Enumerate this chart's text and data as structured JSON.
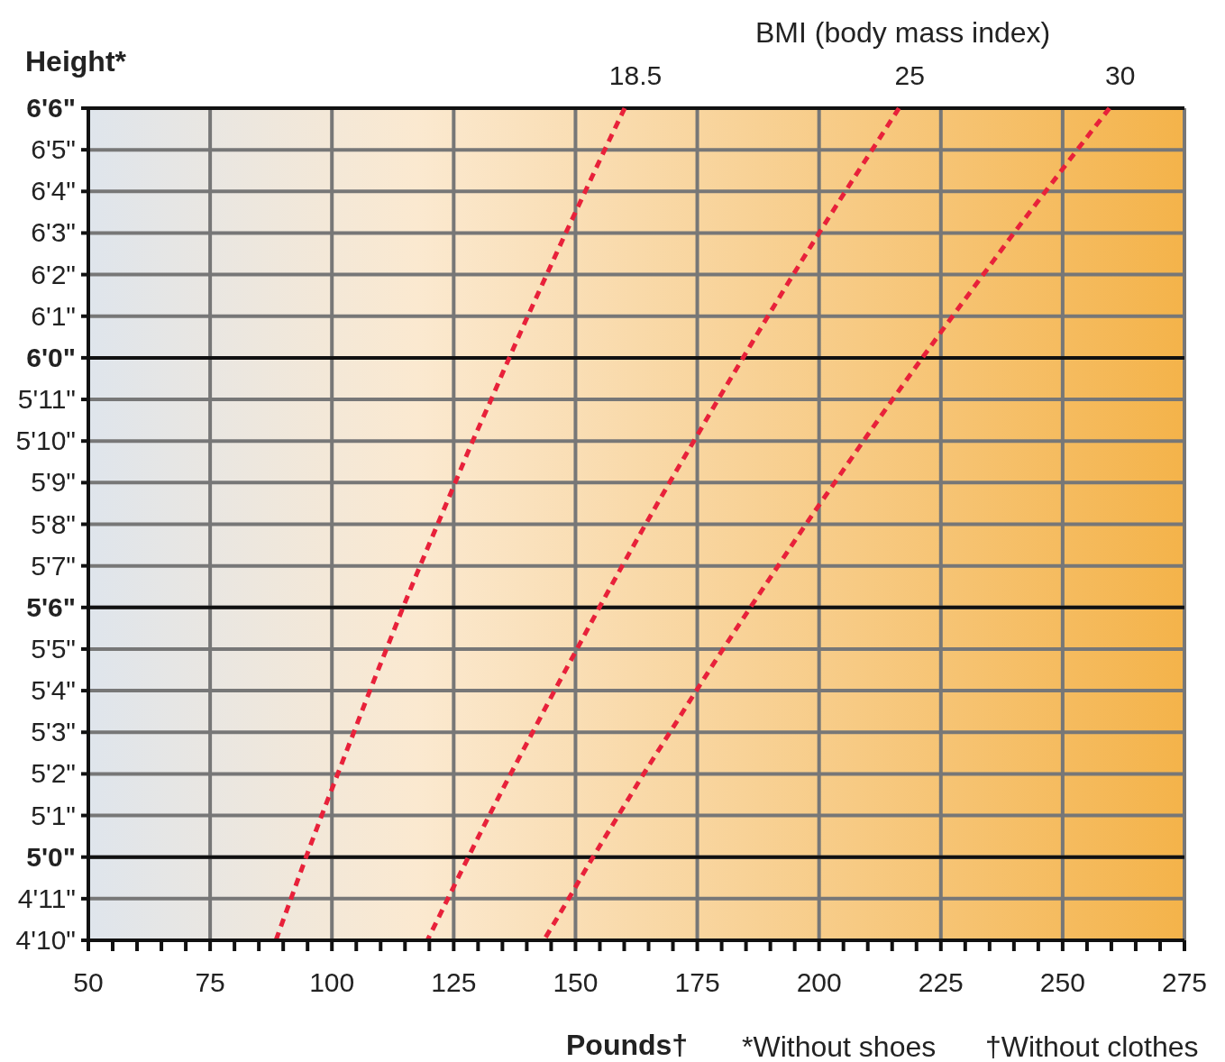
{
  "chart_data": {
    "type": "line",
    "orientation": "horizontal",
    "ylabel": "Height*",
    "xlabel": "Pounds†",
    "legend_title": "BMI (body mass index)",
    "annotations": [
      "*Without shoes",
      "†Without clothes"
    ],
    "categories": [
      "6'6\"",
      "6'5\"",
      "6'4\"",
      "6'3\"",
      "6'2\"",
      "6'1\"",
      "6'0\"",
      "5'11\"",
      "5'10\"",
      "5'9\"",
      "5'8\"",
      "5'7\"",
      "5'6\"",
      "5'5\"",
      "5'4\"",
      "5'3\"",
      "5'2\"",
      "5'1\"",
      "5'0\"",
      "4'11\"",
      "4'10\""
    ],
    "xlim": [
      50,
      275
    ],
    "xticks": [
      50,
      {
        "value": 55,
        "label": null
      },
      {
        "value": 60,
        "label": null
      },
      {
        "value": 65,
        "label": null
      },
      {
        "value": 70,
        "label": null
      },
      75,
      {
        "value": 80,
        "label": null
      },
      {
        "value": 85,
        "label": null
      },
      {
        "value": 90,
        "label": null
      },
      {
        "value": 95,
        "label": null
      },
      100,
      {
        "value": 105,
        "label": null
      },
      {
        "value": 110,
        "label": null
      },
      {
        "value": 115,
        "label": null
      },
      {
        "value": 120,
        "label": null
      },
      125,
      {
        "value": 130,
        "label": null
      },
      {
        "value": 135,
        "label": null
      },
      {
        "value": 140,
        "label": null
      },
      {
        "value": 145,
        "label": null
      },
      150,
      {
        "value": 155,
        "label": null
      },
      {
        "value": 160,
        "label": null
      },
      {
        "value": 165,
        "label": null
      },
      {
        "value": 170,
        "label": null
      },
      175,
      {
        "value": 180,
        "label": null
      },
      {
        "value": 185,
        "label": null
      },
      {
        "value": 190,
        "label": null
      },
      {
        "value": 195,
        "label": null
      },
      200,
      {
        "value": 205,
        "label": null
      },
      {
        "value": 210,
        "label": null
      },
      {
        "value": 215,
        "label": null
      },
      {
        "value": 220,
        "label": null
      },
      225,
      {
        "value": 230,
        "label": null
      },
      {
        "value": 235,
        "label": null
      },
      {
        "value": 240,
        "label": null
      },
      {
        "value": 245,
        "label": null
      },
      250,
      {
        "value": 255,
        "label": null
      },
      {
        "value": 260,
        "label": null
      },
      {
        "value": 265,
        "label": null
      },
      {
        "value": 270,
        "label": null
      },
      275
    ],
    "grid": true,
    "line_style": "dashed",
    "marker": "none",
    "series": [
      {
        "name": "18.5",
        "color": "#e8213a",
        "values": [
          160.1,
          156.0,
          152.0,
          148.0,
          144.1,
          140.2,
          136.4,
          132.7,
          128.9,
          125.3,
          121.7,
          118.1,
          114.6,
          111.2,
          107.8,
          104.5,
          101.2,
          97.9,
          94.7,
          91.6,
          88.5
        ]
      },
      {
        "name": "25",
        "color": "#e8213a",
        "values": [
          216.4,
          210.9,
          205.4,
          200.0,
          194.7,
          189.5,
          184.4,
          179.3,
          174.3,
          169.3,
          164.4,
          159.6,
          154.9,
          150.3,
          145.7,
          141.2,
          136.7,
          132.3,
          128.0,
          123.8,
          119.6
        ]
      },
      {
        "name": "30",
        "color": "#e8213a",
        "values": [
          259.6,
          253.0,
          246.5,
          240.0,
          233.7,
          227.4,
          221.2,
          215.1,
          209.1,
          203.2,
          197.3,
          191.6,
          185.9,
          180.3,
          174.8,
          169.4,
          164.0,
          158.8,
          153.6,
          148.6,
          143.5
        ]
      }
    ]
  }
}
